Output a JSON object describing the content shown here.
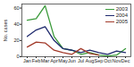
{
  "chart_data": {
    "type": "line",
    "y_label": "No. cases",
    "categories": [
      "Jan",
      "Feb",
      "Mar",
      "Apr",
      "May",
      "Jun",
      "Jul",
      "Aug",
      "Sep",
      "Oct",
      "Nov",
      "Dec"
    ],
    "series": [
      {
        "name": "2003",
        "color": "#3a9a3a",
        "values": [
          45,
          47,
          63,
          25,
          10,
          8,
          3,
          5,
          2,
          1,
          2,
          10
        ]
      },
      {
        "name": "2004",
        "color": "#1f2a6e",
        "values": [
          25,
          33,
          37,
          20,
          10,
          8,
          5,
          8,
          5,
          3,
          7,
          5
        ]
      },
      {
        "name": "2005",
        "color": "#a23a2a",
        "values": [
          12,
          18,
          17,
          8,
          5,
          3,
          10,
          4,
          2,
          null,
          null,
          null
        ]
      }
    ],
    "ylim": [
      0,
      65
    ],
    "yticks": [
      0,
      20,
      40,
      60
    ],
    "legend": "top-right"
  }
}
